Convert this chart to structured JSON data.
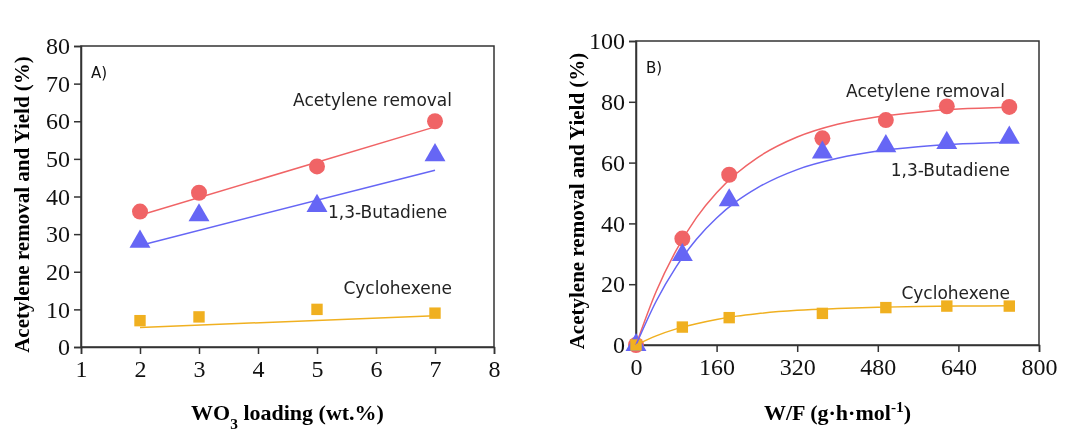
{
  "chart_data": [
    {
      "type": "scatter",
      "xlabel": "WO$_{3}$ loading (wt.%)",
      "ylabel": "Acetylene removal and Yield (%)",
      "annotations": [
        "A)"
      ],
      "xlim": [
        1,
        8
      ],
      "xticks": [
        1,
        2,
        3,
        4,
        5,
        6,
        7,
        8
      ],
      "ylim": [
        0,
        80
      ],
      "yticks": [
        0,
        10,
        20,
        30,
        40,
        50,
        60,
        70,
        80
      ],
      "grid": false,
      "legend": false,
      "series": [
        {
          "name": "Acetylene removal",
          "color": "#f06466",
          "marker": "circle",
          "x": [
            2,
            3,
            5,
            7
          ],
          "values": [
            36,
            41,
            48,
            60
          ]
        },
        {
          "name": "1,3-Butadiene",
          "color": "#6666f5",
          "marker": "triangle",
          "x": [
            2,
            3,
            5,
            7
          ],
          "values": [
            28,
            35,
            37.5,
            51
          ]
        },
        {
          "name": "Cyclohexene",
          "color": "#f0b020",
          "marker": "square",
          "x": [
            2,
            3,
            5,
            7
          ],
          "values": [
            7,
            8,
            10,
            9
          ]
        },
        {
          "type": "line",
          "color": "#f06466",
          "x": [
            2,
            7
          ],
          "values": [
            35,
            58.5
          ]
        },
        {
          "type": "line",
          "color": "#6666f5",
          "x": [
            2,
            7
          ],
          "values": [
            27,
            47
          ]
        },
        {
          "type": "line",
          "color": "#f0b020",
          "x": [
            2,
            7
          ],
          "values": [
            5.2,
            8.3
          ]
        }
      ]
    },
    {
      "type": "scatter",
      "xlabel": "W/F (g·h·mol$^{-1}$)",
      "ylabel": "Acetylene removal and Yield (%)",
      "annotations": [
        "B)"
      ],
      "xlim": [
        0,
        800
      ],
      "xticks": [
        0,
        160,
        320,
        480,
        640,
        800
      ],
      "ylim": [
        0,
        100
      ],
      "yticks": [
        0,
        20,
        40,
        60,
        80,
        100
      ],
      "grid": false,
      "legend": false,
      "series": [
        {
          "name": "Acetylene removal",
          "color": "#f06466",
          "marker": "circle",
          "x": [
            0,
            92,
            185,
            370,
            496,
            617,
            741
          ],
          "values": [
            0,
            35,
            56,
            68,
            74,
            78.5,
            78.3
          ]
        },
        {
          "name": "1,3-Butadiene",
          "color": "#6666f5",
          "marker": "triangle",
          "x": [
            0,
            92,
            185,
            370,
            496,
            617,
            741
          ],
          "values": [
            0,
            29.6,
            47.6,
            63.3,
            65.4,
            66.5,
            68.2
          ]
        },
        {
          "name": "Cyclohexene",
          "color": "#f0b020",
          "marker": "square",
          "x": [
            0,
            92,
            185,
            370,
            496,
            617,
            741
          ],
          "values": [
            0,
            5.9,
            9,
            10.4,
            12.3,
            12.8,
            12.8
          ]
        },
        {
          "type": "line",
          "color": "#f06466",
          "x": [
            0,
            40,
            80,
            120,
            160,
            200,
            240,
            320,
            400,
            480,
            560,
            640,
            740
          ],
          "values": [
            0,
            17.6,
            31.2,
            41.9,
            50.1,
            56.5,
            61.5,
            68.4,
            72.6,
            75.1,
            76.6,
            77.6,
            78.2
          ]
        },
        {
          "type": "line",
          "color": "#6666f5",
          "x": [
            0,
            40,
            80,
            120,
            160,
            200,
            240,
            320,
            400,
            480,
            560,
            640,
            740
          ],
          "values": [
            0,
            14.4,
            25.8,
            34.8,
            41.8,
            47.3,
            51.6,
            57.7,
            61.4,
            63.8,
            65.2,
            66.1,
            66.7
          ]
        },
        {
          "type": "line",
          "color": "#f0b020",
          "x": [
            0,
            40,
            80,
            120,
            160,
            200,
            240,
            320,
            400,
            480,
            560,
            640,
            740
          ],
          "values": [
            0,
            3.0,
            5.3,
            7.0,
            8.4,
            9.5,
            10.3,
            11.4,
            12.0,
            12.4,
            12.7,
            12.8,
            12.9
          ]
        }
      ]
    }
  ]
}
